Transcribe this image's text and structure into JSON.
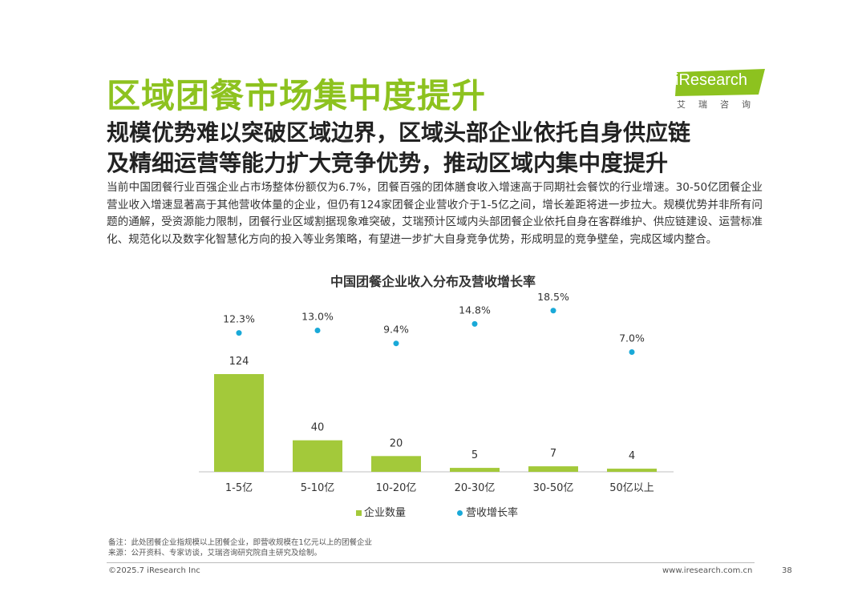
{
  "header": {
    "title": "区域团餐市场集中度提升",
    "subtitle_line1": "规模优势难以突破区域边界，区域头部企业依托自身供应链",
    "subtitle_line2": "及精细运营等能力扩大竞争优势，推动区域内集中度提升"
  },
  "logo": {
    "text": "iResearch",
    "subtext": "艾瑞咨询",
    "color": "#8dc21f"
  },
  "body_text": "当前中国团餐行业百强企业占市场整体份额仅为6.7%，团餐百强的团体膳食收入增速高于同期社会餐饮的行业增速。30-50亿团餐企业营业收入增速显著高于其他营收体量的企业，但仍有124家团餐企业营收介于1-5亿之间，增长差距将进一步拉大。规模优势并非所有问题的通解，受资源能力限制，团餐行业区域割据现象难突破，艾瑞预计区域内头部团餐企业依托自身在客群维护、供应链建设、运营标准化、规范化以及数字化智慧化方向的投入等业务策略，有望进一步扩大自身竞争优势，形成明显的竞争壁垒，完成区域内整合。",
  "chart_data": {
    "type": "bar",
    "title": "中国团餐企业收入分布及营收增长率",
    "categories": [
      "1-5亿",
      "5-10亿",
      "10-20亿",
      "20-30亿",
      "30-50亿",
      "50亿以上"
    ],
    "series": [
      {
        "name": "企业数量",
        "type": "bar",
        "values": [
          124,
          40,
          20,
          5,
          7,
          4
        ],
        "labels": [
          "124",
          "40",
          "20",
          "5",
          "7",
          "4"
        ],
        "color": "#a3c93a"
      },
      {
        "name": "营收增长率",
        "type": "scatter",
        "values": [
          12.3,
          13.0,
          9.4,
          14.8,
          18.5,
          7.0
        ],
        "labels": [
          "12.3%",
          "13.0%",
          "9.4%",
          "14.8%",
          "18.5%",
          "7.0%"
        ],
        "color": "#19a9d8"
      }
    ],
    "legend_position": "bottom",
    "grid": false
  },
  "footer": {
    "note": "备注：此处团餐企业指规模以上团餐企业，即营收规模在1亿元以上的团餐企业",
    "source": "来源：公开资料、专家访谈，艾瑞咨询研究院自主研究及绘制。",
    "copyright": "©2025.7 iResearch Inc",
    "url": "www.iresearch.com.cn",
    "page": "38"
  }
}
